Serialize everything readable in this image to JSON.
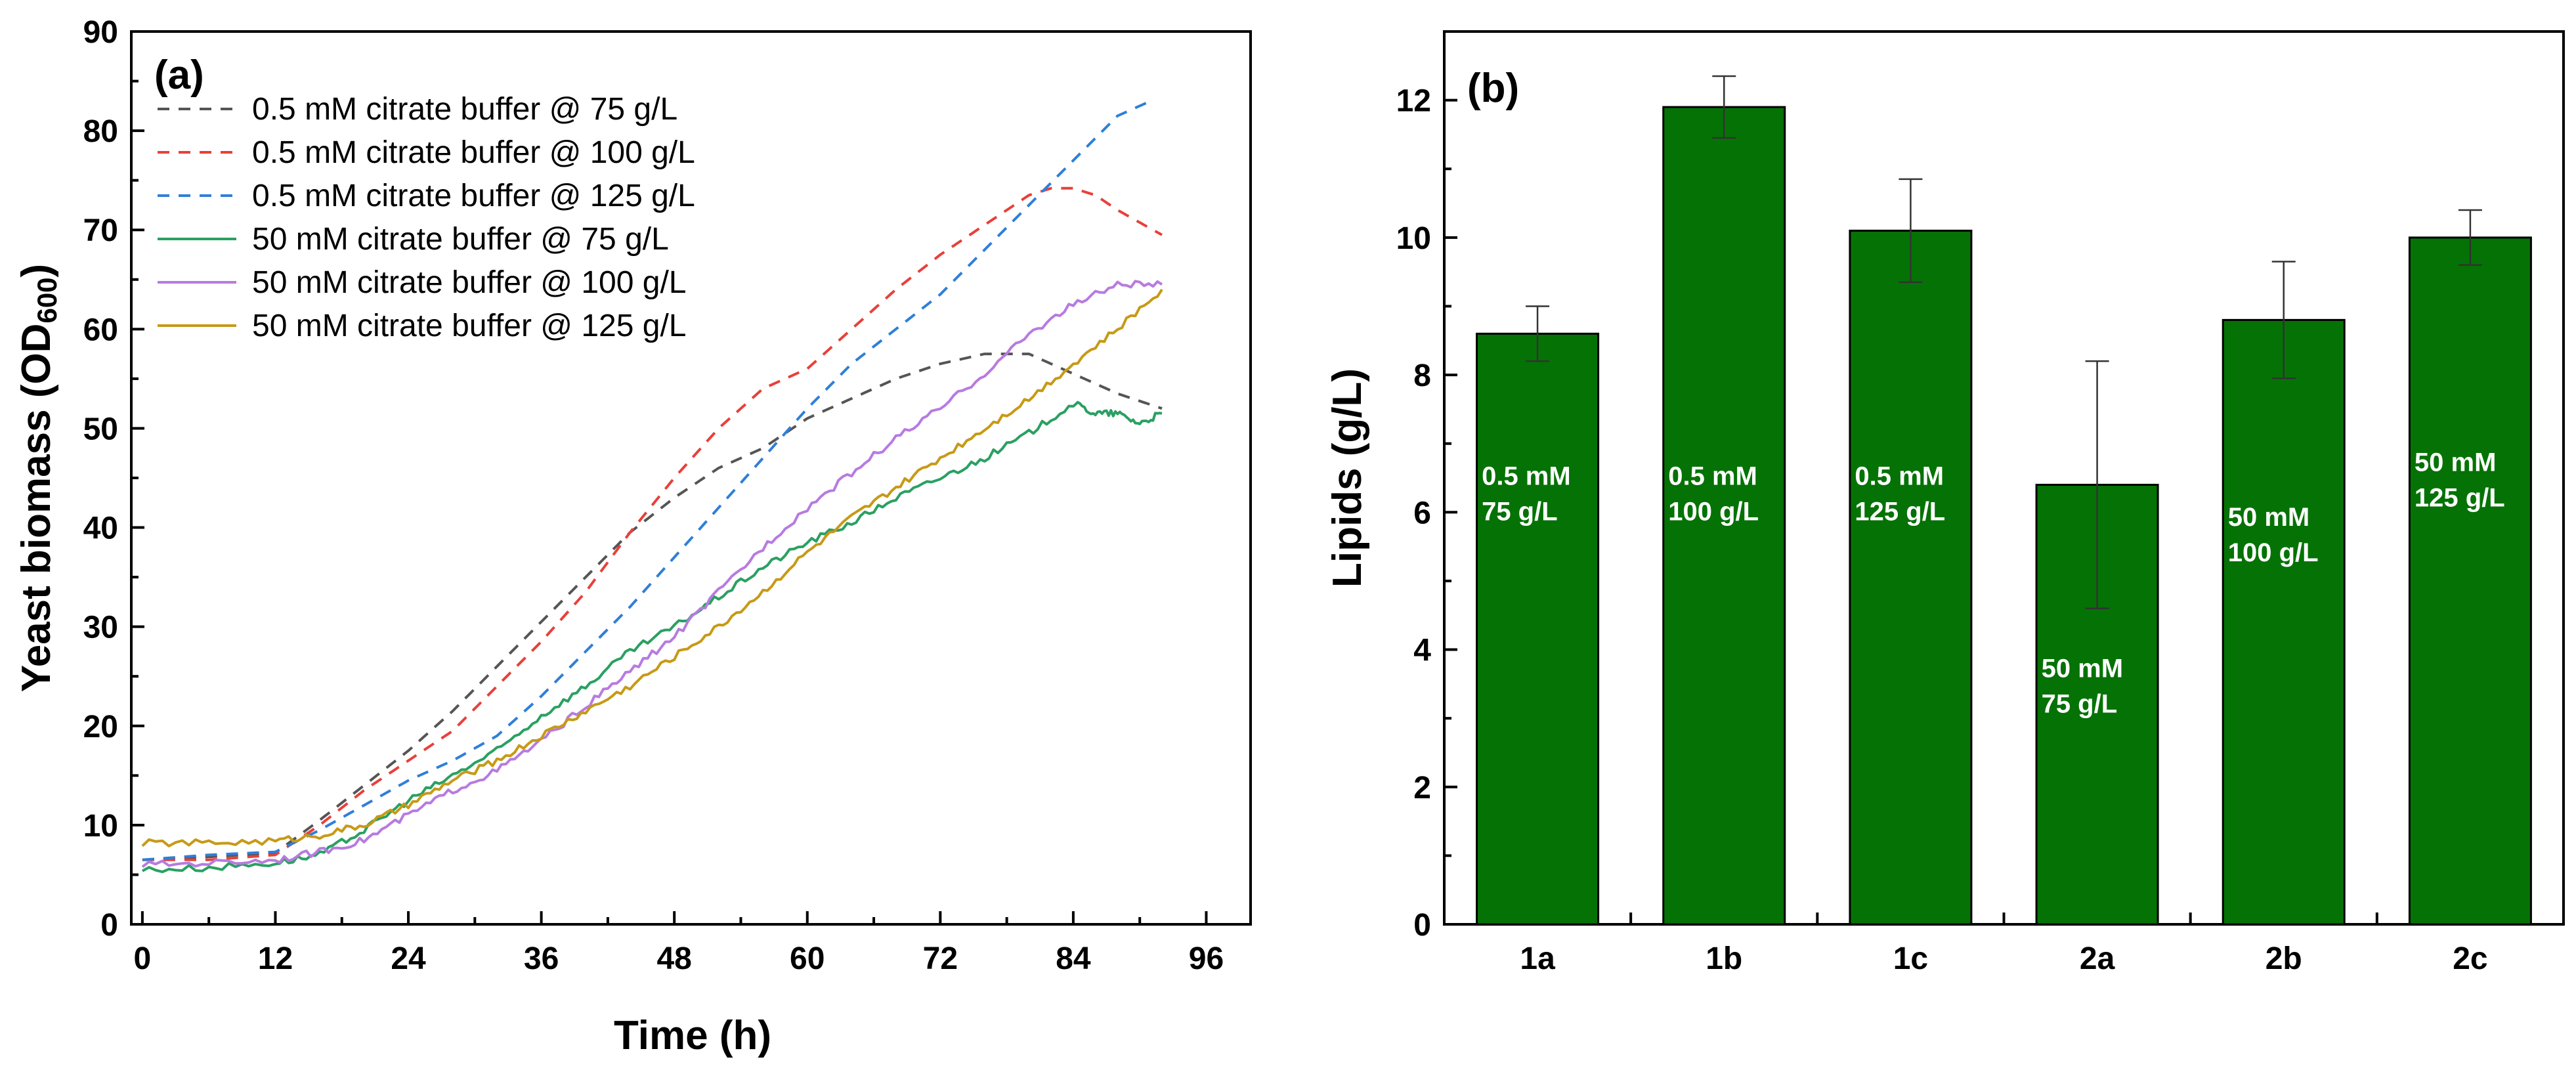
{
  "chart_data": [
    {
      "type": "line",
      "panel_label": "(a)",
      "xlabel": "Time (h)",
      "ylabel_main": "Yeast biomass (OD",
      "ylabel_sub": "600",
      "ylabel_close": ")",
      "xlim": [
        -1,
        100
      ],
      "ylim": [
        0,
        90
      ],
      "xticks": [
        0,
        12,
        24,
        36,
        48,
        60,
        72,
        84,
        96
      ],
      "yticks": [
        0,
        10,
        20,
        30,
        40,
        50,
        60,
        70,
        80,
        90
      ],
      "legend_position": "top-left",
      "series": [
        {
          "name": "0.5 mM citrate buffer @ 75 g/L",
          "color": "#555555",
          "dashed": true,
          "x": [
            0,
            6,
            12,
            16,
            20,
            24,
            28,
            32,
            36,
            40,
            44,
            48,
            52,
            56,
            60,
            64,
            68,
            72,
            76,
            80,
            84,
            88,
            92
          ],
          "y": [
            6.5,
            6.8,
            7.2,
            10.5,
            14,
            17.5,
            21.5,
            26,
            30.5,
            35,
            39.5,
            43,
            46,
            48,
            51,
            53,
            55,
            56.5,
            57.5,
            57.5,
            55.5,
            53.5,
            52
          ]
        },
        {
          "name": "0.5 mM citrate buffer @ 100 g/L",
          "color": "#e8403a",
          "dashed": true,
          "x": [
            0,
            6,
            12,
            16,
            20,
            24,
            28,
            32,
            36,
            40,
            44,
            48,
            52,
            56,
            60,
            64,
            68,
            72,
            76,
            80,
            82,
            84,
            86,
            88,
            92
          ],
          "y": [
            6.5,
            6.5,
            7,
            10,
            13.5,
            16.5,
            19.5,
            24,
            28.5,
            33.5,
            39.5,
            45,
            50,
            54,
            56,
            60,
            64,
            67.5,
            70.5,
            73.5,
            74.2,
            74.2,
            73.5,
            72,
            69.5
          ]
        },
        {
          "name": "0.5 mM citrate buffer @ 125 g/L",
          "color": "#2f7fd8",
          "dashed": true,
          "x": [
            0,
            6,
            12,
            16,
            20,
            24,
            28,
            32,
            36,
            40,
            44,
            48,
            52,
            56,
            60,
            64,
            68,
            72,
            76,
            80,
            84,
            88,
            91
          ],
          "y": [
            6.5,
            7,
            7.3,
            9.5,
            12,
            14.5,
            16.5,
            19,
            23,
            27.5,
            32,
            37,
            42,
            47,
            52,
            56.5,
            60,
            63.5,
            68,
            72.5,
            77,
            81.5,
            83
          ]
        },
        {
          "name": "50 mM citrate buffer @ 75 g/L",
          "color": "#2aa062",
          "dashed": false,
          "x": [
            0,
            6,
            12,
            16,
            20,
            24,
            28,
            32,
            36,
            40,
            44,
            48,
            52,
            56,
            60,
            64,
            68,
            72,
            76,
            80,
            84,
            86,
            88,
            90,
            92
          ],
          "y": [
            5.5,
            5.7,
            6.2,
            7,
            9.5,
            12.5,
            15,
            17.5,
            21,
            24,
            27.5,
            30,
            33,
            36,
            38.5,
            40.5,
            43,
            45,
            47,
            49.5,
            52.5,
            51.5,
            51.5,
            50.5,
            51.5
          ]
        },
        {
          "name": "50 mM citrate buffer @ 100 g/L",
          "color": "#b77be0",
          "dashed": false,
          "x": [
            0,
            6,
            12,
            16,
            20,
            24,
            28,
            32,
            36,
            40,
            44,
            48,
            52,
            56,
            60,
            64,
            68,
            72,
            76,
            80,
            84,
            88,
            92
          ],
          "y": [
            6,
            6.2,
            6.5,
            7.3,
            8.5,
            11,
            13.5,
            15.5,
            18.5,
            22,
            25.5,
            29,
            33.5,
            38,
            42,
            45.5,
            49,
            52,
            55.5,
            59.5,
            62.5,
            64.5,
            64.5
          ]
        },
        {
          "name": "50 mM citrate buffer @ 125 g/L",
          "color": "#c79a16",
          "dashed": false,
          "x": [
            0,
            6,
            12,
            16,
            20,
            24,
            28,
            32,
            36,
            40,
            44,
            48,
            52,
            56,
            60,
            64,
            68,
            72,
            76,
            80,
            84,
            88,
            92
          ],
          "y": [
            8.2,
            8.2,
            8.4,
            9,
            10,
            12,
            14.5,
            16.5,
            19,
            21.5,
            24,
            27,
            30,
            33.5,
            37.5,
            41,
            44,
            47,
            50,
            53,
            56.5,
            60,
            64
          ]
        }
      ]
    },
    {
      "type": "bar",
      "panel_label": "(b)",
      "ylabel": "Lipids (g/L)",
      "xlabel": "",
      "ylim": [
        0,
        13
      ],
      "yticks": [
        0,
        2,
        4,
        6,
        8,
        10,
        12
      ],
      "bar_color": "#057205",
      "categories": [
        "1a",
        "1b",
        "1c",
        "2a",
        "2b",
        "2c"
      ],
      "values": [
        8.6,
        11.9,
        10.1,
        6.4,
        8.8,
        10.0
      ],
      "errors": [
        0.4,
        0.45,
        0.75,
        1.8,
        0.85,
        0.4
      ],
      "bar_labels": [
        [
          "0.5 mM",
          "75 g/L"
        ],
        [
          "0.5 mM",
          "100 g/L"
        ],
        [
          "0.5 mM",
          "125 g/L"
        ],
        [
          "50 mM",
          "75 g/L"
        ],
        [
          "50 mM",
          "100 g/L"
        ],
        [
          "50 mM",
          "125 g/L"
        ]
      ],
      "bar_label_y": [
        6.4,
        6.4,
        6.4,
        3.6,
        5.8,
        6.6
      ]
    }
  ]
}
